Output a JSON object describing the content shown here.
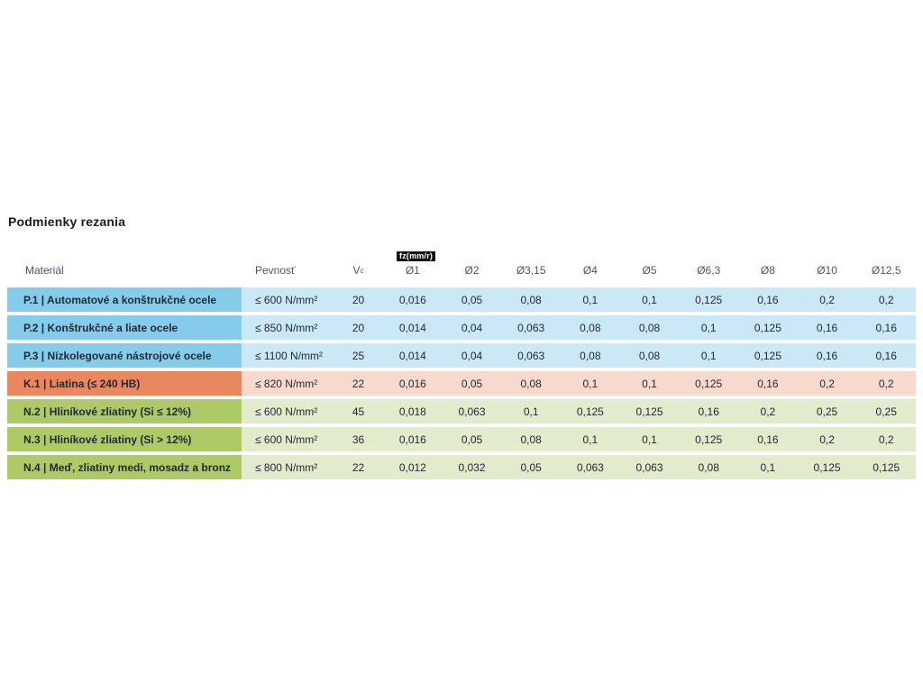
{
  "title": "Podmienky rezania",
  "colors": {
    "page_bg": "#ffffff",
    "title_text": "#181b22",
    "header_text": "#51555e",
    "cell_text": "#212936",
    "badge_bg": "#111111",
    "badge_text": "#ffffff",
    "P_label": "#84cce9",
    "P_row": "#cbe8f6",
    "K_label": "#e9875f",
    "K_row": "#f8d9cd",
    "N_label": "#aeca67",
    "N_row": "#e2ebcb"
  },
  "table": {
    "unit_badge": "fz(mm/r)",
    "col_material": "Materiál",
    "col_strength": "Pevnosť",
    "col_vc_main": "V",
    "col_vc_sub": "c",
    "diameter_cols": [
      "Ø1",
      "Ø2",
      "Ø3,15",
      "Ø4",
      "Ø5",
      "Ø6,3",
      "Ø8",
      "Ø10",
      "Ø12,5"
    ],
    "rows": [
      {
        "group": "P",
        "material": "P.1 | Automatové a konštrukčné ocele",
        "strength": "≤ 600 N/mm²",
        "vc": "20",
        "values": [
          "0,016",
          "0,05",
          "0,08",
          "0,1",
          "0,1",
          "0,125",
          "0,16",
          "0,2",
          "0,2"
        ]
      },
      {
        "group": "P",
        "material": "P.2 | Konštrukčné a liate ocele",
        "strength": "≤ 850 N/mm²",
        "vc": "20",
        "values": [
          "0,014",
          "0,04",
          "0,063",
          "0,08",
          "0,08",
          "0,1",
          "0,125",
          "0,16",
          "0,16"
        ]
      },
      {
        "group": "P",
        "material": "P.3 | Nízkolegované nástrojové ocele",
        "strength": "≤ 1100 N/mm²",
        "vc": "25",
        "values": [
          "0,014",
          "0,04",
          "0,063",
          "0,08",
          "0,08",
          "0,1",
          "0,125",
          "0,16",
          "0,16"
        ]
      },
      {
        "group": "K",
        "material": "K.1 | Liatina (≤ 240 HB)",
        "strength": "≤ 820 N/mm²",
        "vc": "22",
        "values": [
          "0,016",
          "0,05",
          "0,08",
          "0,1",
          "0,1",
          "0,125",
          "0,16",
          "0,2",
          "0,2"
        ]
      },
      {
        "group": "N",
        "material": "N.2 | Hliníkové zliatiny (Si ≤ 12%)",
        "strength": "≤ 600 N/mm²",
        "vc": "45",
        "values": [
          "0,018",
          "0,063",
          "0,1",
          "0,125",
          "0,125",
          "0,16",
          "0,2",
          "0,25",
          "0,25"
        ]
      },
      {
        "group": "N",
        "material": "N.3 | Hliníkové zliatiny (Si > 12%)",
        "strength": "≤ 600 N/mm²",
        "vc": "36",
        "values": [
          "0,016",
          "0,05",
          "0,08",
          "0,1",
          "0,1",
          "0,125",
          "0,16",
          "0,2",
          "0,2"
        ]
      },
      {
        "group": "N",
        "material": "N.4 | Meď, zliatiny medi, mosadz a bronz",
        "strength": "≤ 800 N/mm²",
        "vc": "22",
        "values": [
          "0,012",
          "0,032",
          "0,05",
          "0,063",
          "0,063",
          "0,08",
          "0,1",
          "0,125",
          "0,125"
        ]
      }
    ]
  }
}
